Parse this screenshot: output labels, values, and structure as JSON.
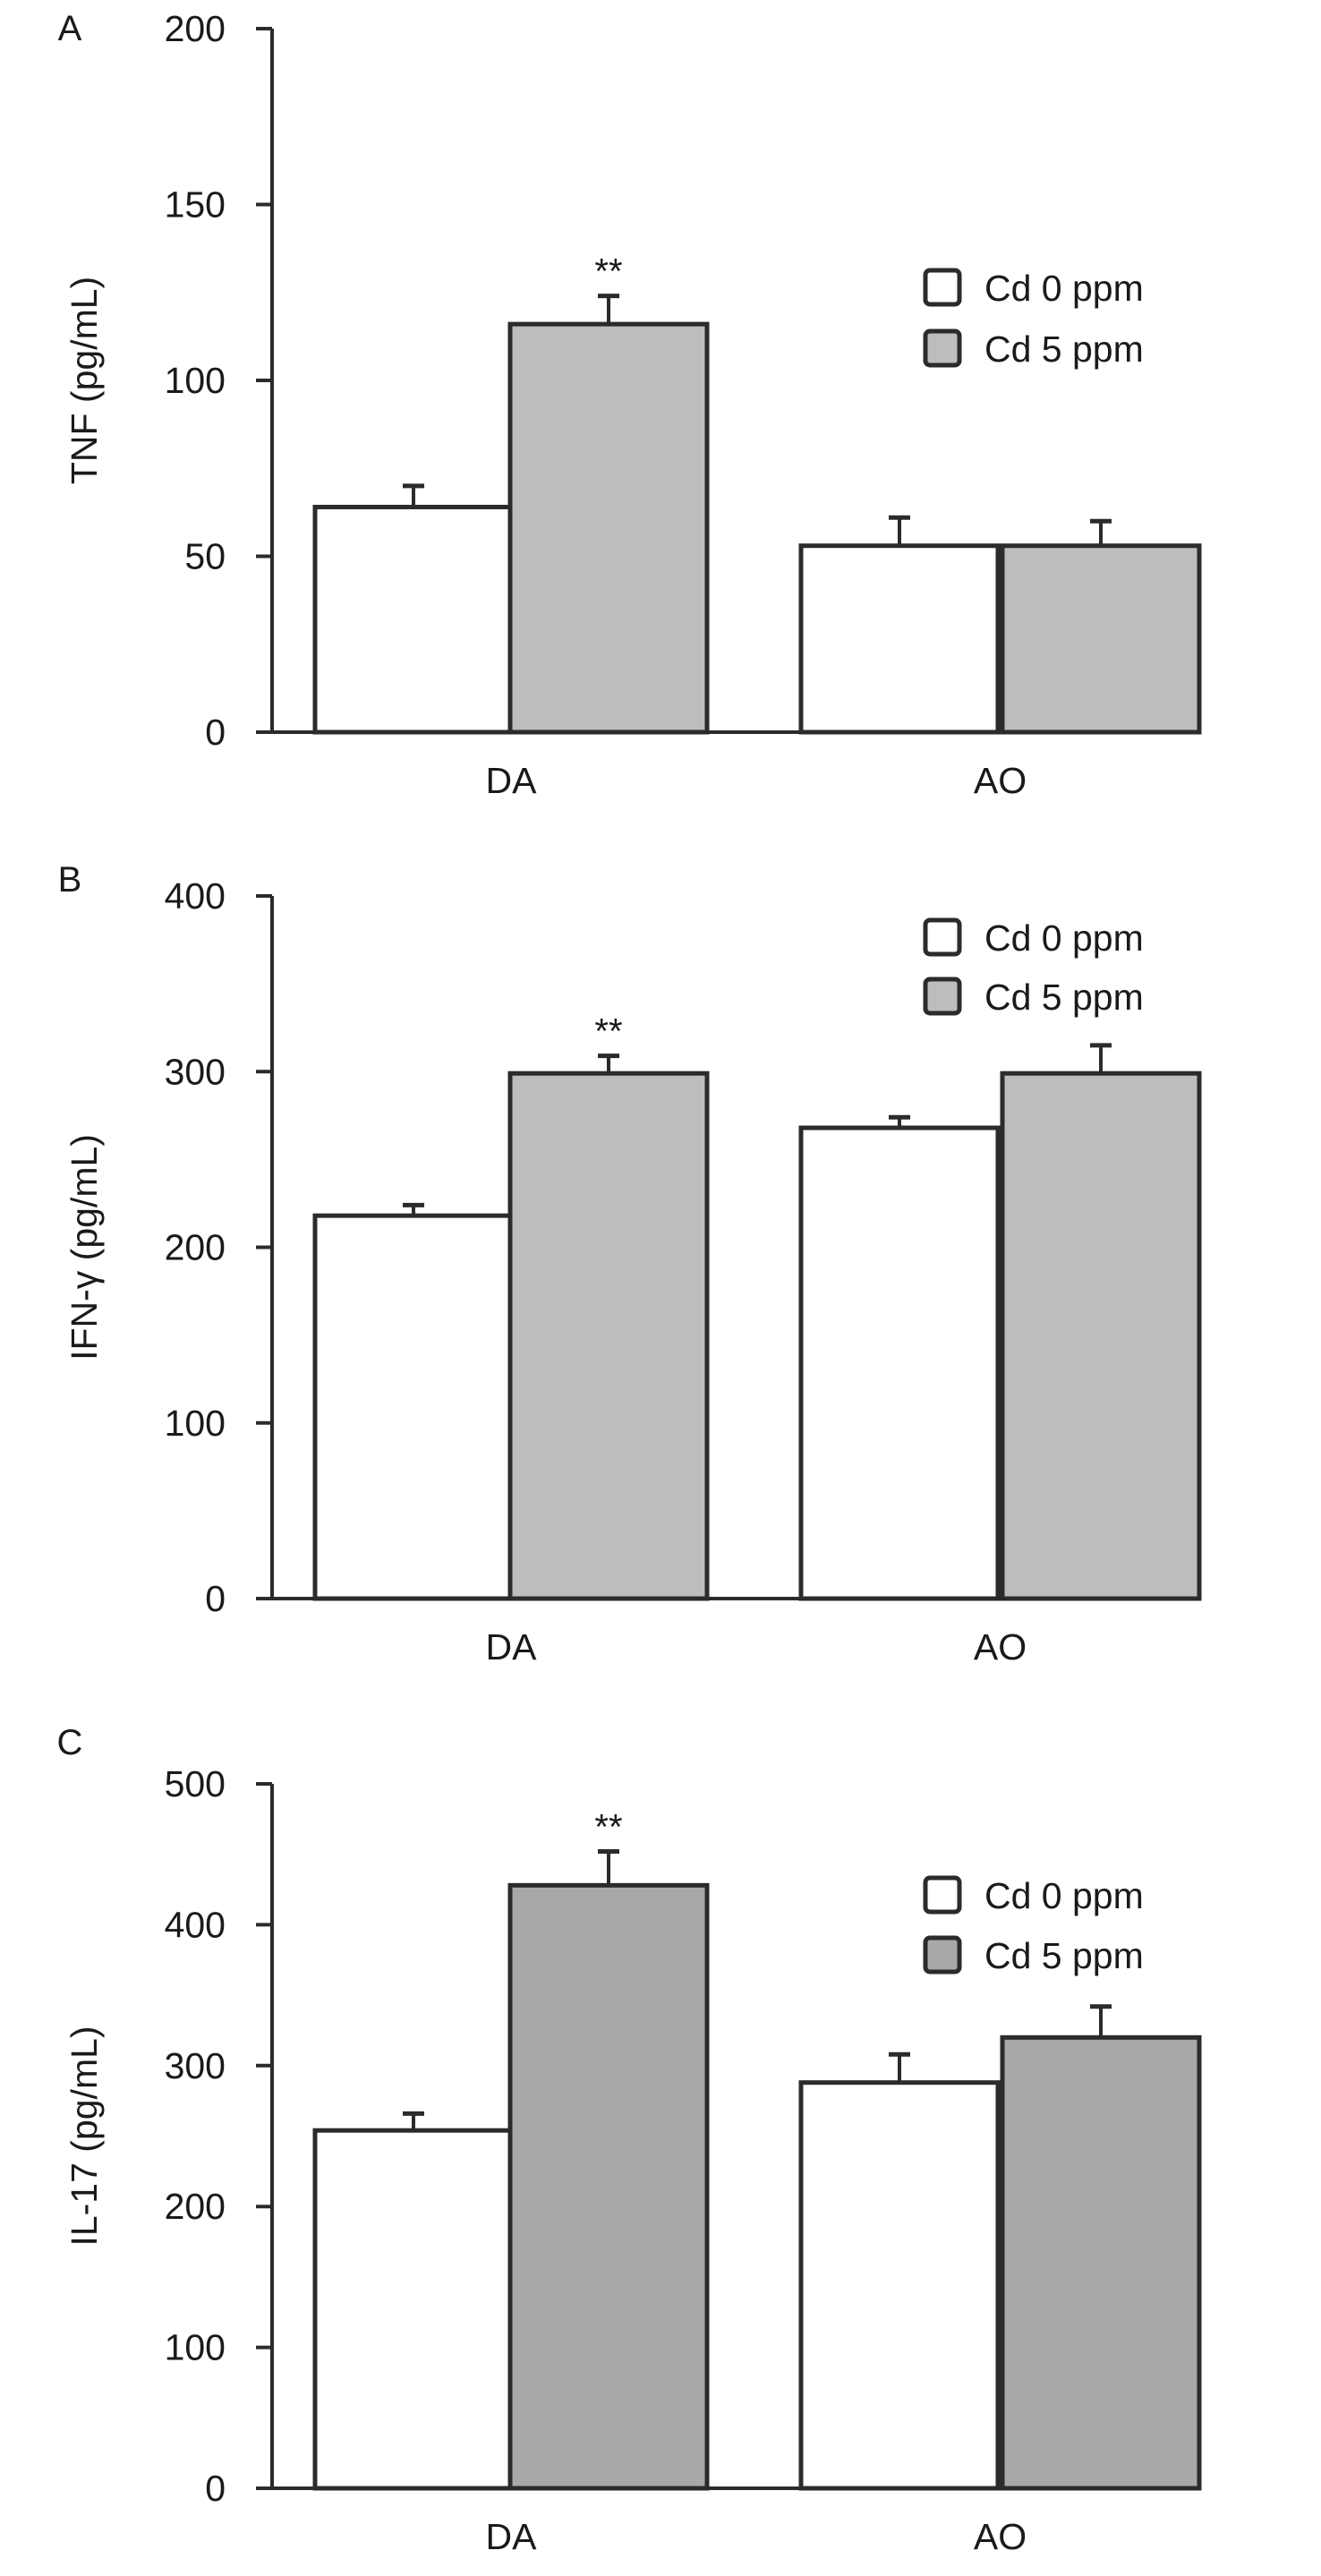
{
  "chart_data": [
    {
      "type": "bar",
      "panel": "A",
      "ylabel": "TNF (pg/mL)",
      "ylim": [
        0,
        200
      ],
      "yticks": [
        0,
        50,
        100,
        150,
        200
      ],
      "categories": [
        "DA",
        "AO"
      ],
      "series": [
        {
          "name": "Cd 0 ppm",
          "values": [
            64,
            53
          ],
          "errors": [
            6,
            8
          ],
          "color": "#ffffff"
        },
        {
          "name": "Cd 5 ppm",
          "values": [
            116,
            53
          ],
          "errors": [
            8,
            7
          ],
          "color": "#bdbdbd"
        }
      ],
      "annotations": [
        {
          "category": "DA",
          "series": 1,
          "text": "**"
        }
      ],
      "legend": "right"
    },
    {
      "type": "bar",
      "panel": "B",
      "ylabel": "IFN-γ (pg/mL)",
      "ylim": [
        0,
        400
      ],
      "yticks": [
        0,
        100,
        200,
        300,
        400
      ],
      "categories": [
        "DA",
        "AO"
      ],
      "series": [
        {
          "name": "Cd 0 ppm",
          "values": [
            218,
            268
          ],
          "errors": [
            6,
            6
          ],
          "color": "#ffffff"
        },
        {
          "name": "Cd 5 ppm",
          "values": [
            299,
            299
          ],
          "errors": [
            10,
            16
          ],
          "color": "#bdbdbd"
        }
      ],
      "annotations": [
        {
          "category": "DA",
          "series": 1,
          "text": "**"
        }
      ],
      "legend": "top-right"
    },
    {
      "type": "bar",
      "panel": "C",
      "ylabel": "IL-17 (pg/mL)",
      "ylim": [
        0,
        500
      ],
      "yticks": [
        0,
        100,
        200,
        300,
        400,
        500
      ],
      "categories": [
        "DA",
        "AO"
      ],
      "series": [
        {
          "name": "Cd 0 ppm",
          "values": [
            254,
            288
          ],
          "errors": [
            12,
            20
          ],
          "color": "#ffffff"
        },
        {
          "name": "Cd 5 ppm",
          "values": [
            428,
            320
          ],
          "errors": [
            24,
            22
          ],
          "color": "#a8a8a8"
        }
      ],
      "annotations": [
        {
          "category": "DA",
          "series": 1,
          "text": "**"
        }
      ],
      "legend": "right"
    }
  ]
}
